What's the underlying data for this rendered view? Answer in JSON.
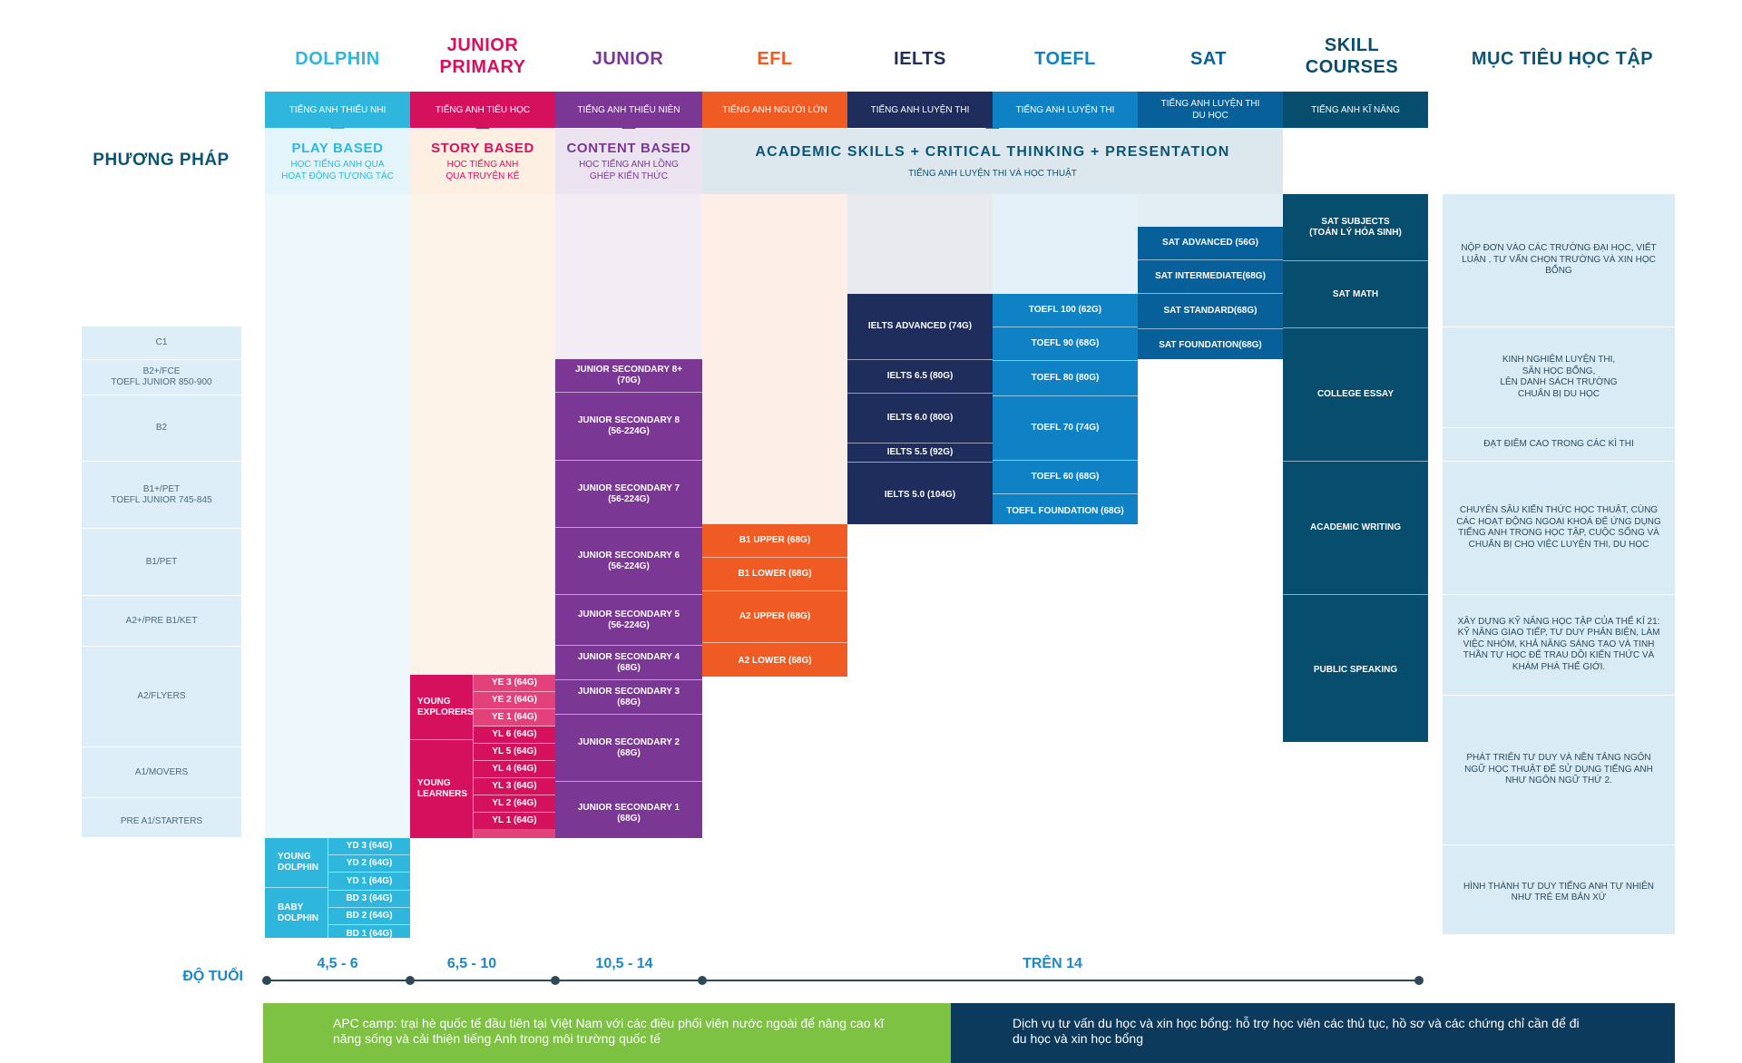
{
  "header": {
    "columns": [
      {
        "name": "DOLPHIN",
        "sub": "TIẾNG ANH THIẾU NHI"
      },
      {
        "name": "JUNIOR PRIMARY",
        "sub": "TIẾNG ANH TIỂU HỌC"
      },
      {
        "name": "JUNIOR",
        "sub": "TIẾNG ANH THIẾU NIÊN"
      },
      {
        "name": "EFL",
        "sub": "TIẾNG ANH NGƯỜI LỚN"
      },
      {
        "name": "IELTS",
        "sub": "TIẾNG ANH LUYỆN THI"
      },
      {
        "name": "TOEFL",
        "sub": "TIẾNG ANH LUYỆN THI"
      },
      {
        "name": "SAT",
        "sub": "TIẾNG ANH LUYỆN THI DU HỌC"
      },
      {
        "name": "SKILL COURSES",
        "sub": "TIẾNG ANH KĨ NĂNG"
      }
    ],
    "goal_title": "MỤC TIÊU HỌC TẬP",
    "method_label": "PHƯƠNG PHÁP"
  },
  "methods": [
    {
      "title": "PLAY BASED",
      "desc": "HỌC TIẾNG ANH QUA HOẠT ĐỘNG TƯƠNG TÁC"
    },
    {
      "title": "STORY BASED",
      "desc": "HỌC TIẾNG ANH QUA TRUYỆN KỂ"
    },
    {
      "title": "CONTENT BASED",
      "desc": "HỌC TIẾNG ANH LỒNG GHÉP KIẾN THỨC"
    },
    {
      "title": "ACADEMIC SKILLS + CRITICAL THINKING + PRESENTATION",
      "desc": "TIẾNG ANH LUYỆN THI VÀ HỌC THUẬT"
    }
  ],
  "levels": [
    "C1",
    "B2+/FCE\nTOEFL JUNIOR 850-900",
    "B2",
    "B1+/PET\nTOEFL JUNIOR 745-845",
    "B1/PET",
    "A2+/PRE B1/KET",
    "A2/FLYERS",
    "A1/MOVERS",
    "PRE A1/STARTERS"
  ],
  "goals": [
    "NỘP ĐƠN VÀO CÁC TRƯỜNG ĐẠI HỌC, VIẾT LUẬN , TƯ VẤN CHỌN TRƯỜNG VÀ XIN HỌC BỔNG",
    "KINH NGHIỆM LUYỆN THI,\nSĂN HỌC BỔNG,\nLÊN DANH SÁCH TRƯỜNG\nCHUẨN BỊ DU HỌC",
    "ĐẠT ĐIỂM CAO TRONG CÁC KÌ THI",
    "CHUYÊN SÂU KIẾN THỨC HỌC THUẬT, CÙNG CÁC HOẠT ĐỘNG NGOẠI KHOÁ ĐỂ ỨNG DỤNG TIẾNG ANH TRONG HỌC TẬP, CUỘC SỐNG VÀ CHUẨN BỊ CHO VIỆC LUYỆN THI, DU HỌC",
    "XÂY DỰNG KỸ NĂNG HỌC TẬP CỦA THẾ KỈ 21: KỸ NĂNG GIAO TIẾP, TƯ DUY PHẢN BIỆN, LÀM VIỆC NHÓM, KHẢ NĂNG SÁNG TẠO VÀ TINH THẦN TỰ HỌC ĐỂ TRAU DỒI KIẾN THỨC VÀ KHÁM PHÁ THẾ GIỚI.",
    "PHÁT TRIỂN TƯ DUY VÀ NỀN TẢNG NGÔN NGỮ HỌC THUẬT ĐỂ SỬ DỤNG TIẾNG ANH NHƯ NGÔN NGỮ THỨ 2.",
    "HÌNH THÀNH TƯ DUY TIẾNG ANH TỰ NHIÊN NHƯ TRẺ EM BẢN XỨ"
  ],
  "dolphin": {
    "groups": [
      "YOUNG DOLPHIN",
      "BABY DOLPHIN"
    ],
    "items": [
      "YD 3 (64G)",
      "YD 2 (64G)",
      "YD 1 (64G)",
      "BD 3 (64G)",
      "BD 2 (64G)",
      "BD 1 (64G)"
    ]
  },
  "junior_primary": {
    "groups": [
      "YOUNG EXPLORERS",
      "YOUNG LEARNERS"
    ],
    "items": [
      "YE 3 (64G)",
      "YE 2 (64G)",
      "YE 1 (64G)",
      "YL 6 (64G)",
      "YL 5 (64G)",
      "YL 4 (64G)",
      "YL 3 (64G)",
      "YL 2 (64G)",
      "YL 1 (64G)"
    ]
  },
  "junior": [
    "JUNIOR SECONDARY 8+\n(70G)",
    "JUNIOR SECONDARY 8\n(56-224G)",
    "JUNIOR SECONDARY 7\n(56-224G)",
    "JUNIOR SECONDARY 6\n(56-224G)",
    "JUNIOR SECONDARY 5\n(56-224G)",
    "JUNIOR SECONDARY 4\n(68G)",
    "JUNIOR SECONDARY 3\n(68G)",
    "JUNIOR SECONDARY 2\n(68G)",
    "JUNIOR SECONDARY 1\n(68G)"
  ],
  "efl": [
    "B1 UPPER (68G)",
    "B1 LOWER (68G)",
    "A2 UPPER (68G)",
    "A2 LOWER (68G)"
  ],
  "ielts": [
    "IELTS ADVANCED (74G)",
    "IELTS 6.5 (80G)",
    "IELTS 6.0 (80G)",
    "IELTS 5.5 (92G)",
    "IELTS 5.0 (104G)"
  ],
  "toefl": [
    "TOEFL 100 (62G)",
    "TOEFL 90 (68G)",
    "TOEFL 80 (80G)",
    "TOEFL 70 (74G)",
    "TOEFL 60 (68G)",
    "TOEFL FOUNDATION (68G)"
  ],
  "sat": [
    "SAT ADVANCED (56G)",
    "SAT INTERMEDIATE(68G)",
    "SAT STANDARD(68G)",
    "SAT FOUNDATION(68G)"
  ],
  "skills": [
    "SAT SUBJECTS\n(TOÁN LÝ HÓA SINH)",
    "SAT MATH",
    "COLLEGE ESSAY",
    "ACADEMIC WRITING",
    "PUBLIC SPEAKING"
  ],
  "age": {
    "label": "ĐỘ TUỔI",
    "ranges": [
      "4,5 - 6",
      "6,5 - 10",
      "10,5 - 14",
      "TRÊN 14"
    ]
  },
  "banners": [
    "APC camp: trại hè quốc tế đầu tiên tại Việt Nam với các điều phối viên nước ngoài để nâng cao kĩ năng sống và cải thiện tiếng Anh trong môi trường quốc tế",
    "Dịch vụ tư vấn du học và xin học bổng: hỗ trợ học viên các thủ tục, hồ sơ và các chứng chỉ cần để đi du học và xin học bổng"
  ],
  "colors": {
    "dolphin": "#2fb6dc",
    "junior_primary": "#d5115e",
    "junior": "#7a3794",
    "efl": "#f05a23",
    "ielts": "#1e2d5c",
    "toefl": "#0f82c5",
    "sat": "#08609a",
    "skill": "#074d6e",
    "goal_text": "#0b5577",
    "green": "#7dc243",
    "navy": "#0c3a5c"
  }
}
